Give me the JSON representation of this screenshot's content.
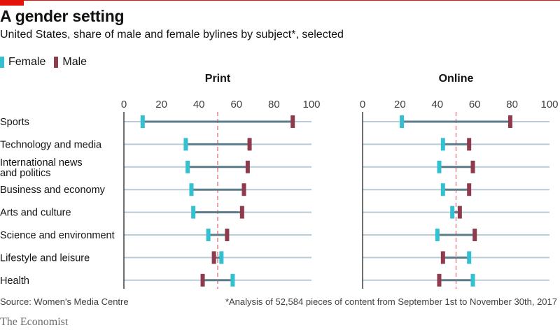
{
  "header": {
    "title": "A gender setting",
    "subtitle": "United States, share of male and female bylines by subject*, selected"
  },
  "legend": {
    "female_label": "Female",
    "male_label": "Male"
  },
  "colors": {
    "female": "#33c0d1",
    "male": "#8f3a4d",
    "connector": "#5d7c8a",
    "gridline": "#b9ccd6",
    "reference": "#e3707a",
    "accent": "#e3120b"
  },
  "footer": {
    "source": "Source: Women's Media Centre",
    "note": "*Analysis of 52,584 pieces of content from September 1st to November 30th, 2017",
    "brand": "The Economist"
  },
  "chart_data": [
    {
      "type": "dumbbell",
      "title": "Print",
      "xlim": [
        0,
        100
      ],
      "ticks": [
        0,
        20,
        40,
        60,
        80,
        100
      ],
      "reference_line": 50,
      "categories": [
        "Sports",
        "Technology and media",
        "International news and politics",
        "Business and economy",
        "Arts and culture",
        "Science and environment",
        "Lifestyle and leisure",
        "Health"
      ],
      "series": [
        {
          "name": "Female",
          "values": [
            10,
            33,
            34,
            36,
            37,
            45,
            52,
            58
          ]
        },
        {
          "name": "Male",
          "values": [
            90,
            67,
            66,
            64,
            63,
            55,
            48,
            42
          ]
        }
      ]
    },
    {
      "type": "dumbbell",
      "title": "Online",
      "xlim": [
        0,
        100
      ],
      "ticks": [
        0,
        20,
        40,
        60,
        80,
        100
      ],
      "reference_line": 50,
      "categories": [
        "Sports",
        "Technology and media",
        "International news and politics",
        "Business and economy",
        "Arts and culture",
        "Science and environment",
        "Lifestyle and leisure",
        "Health"
      ],
      "series": [
        {
          "name": "Female",
          "values": [
            21,
            43,
            41,
            43,
            48,
            40,
            57,
            59
          ]
        },
        {
          "name": "Male",
          "values": [
            79,
            57,
            59,
            57,
            52,
            60,
            43,
            41
          ]
        }
      ]
    }
  ]
}
